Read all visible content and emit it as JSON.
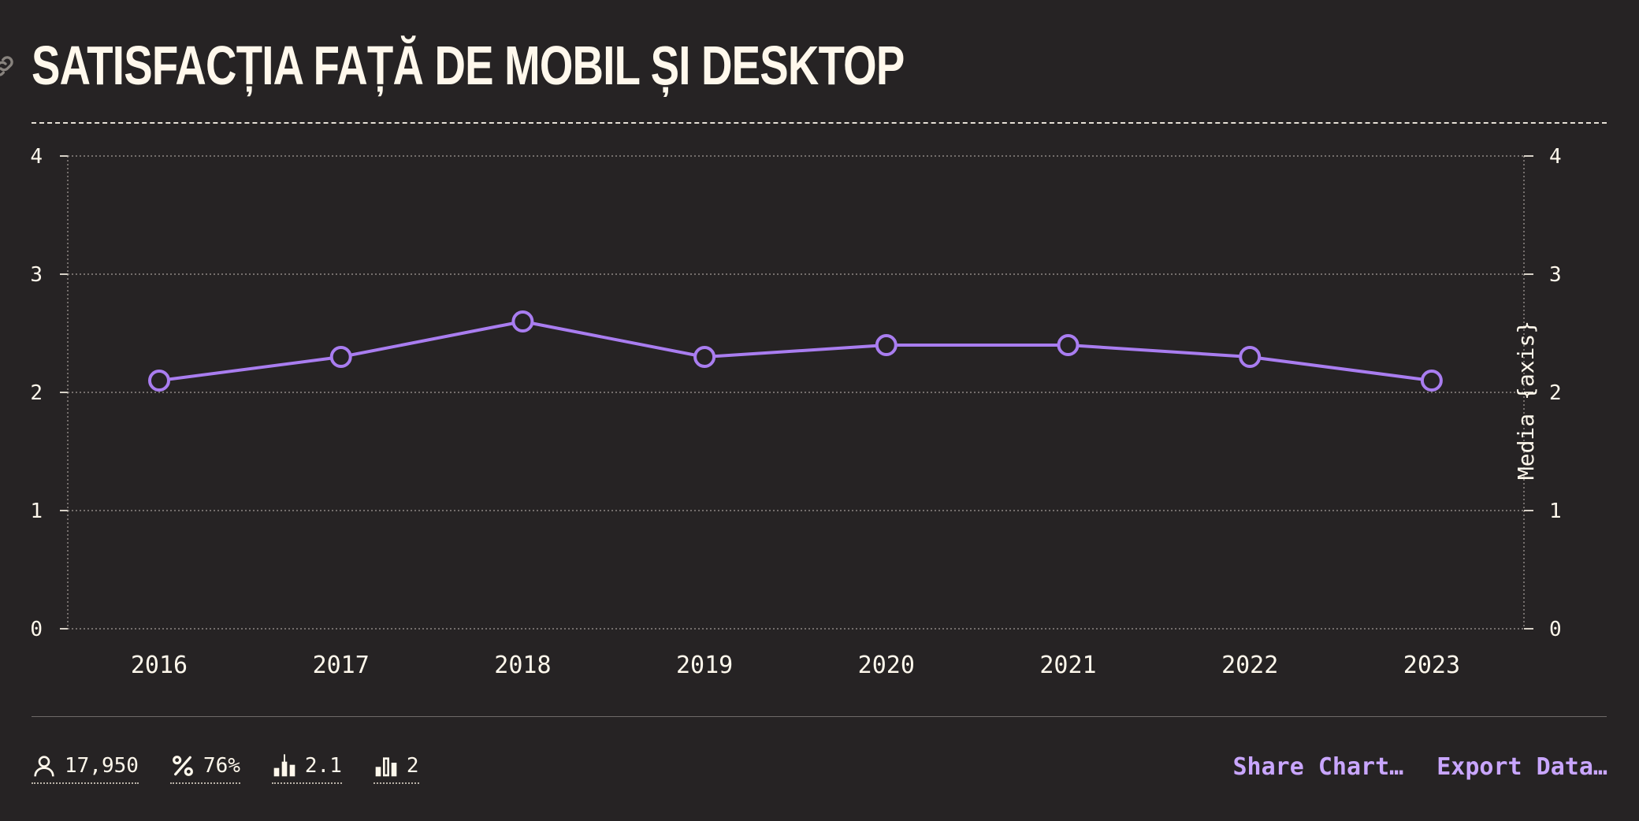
{
  "title": "SATISFACȚIA FAȚĂ DE MOBIL ȘI DESKTOP",
  "colors": {
    "background": "#262324",
    "text": "#fff8ec",
    "accent": "#a97df0",
    "link": "#c9a6ff"
  },
  "icons": {
    "title_link": "link-icon"
  },
  "chart_data": {
    "type": "line",
    "title": "SATISFACȚIA FAȚĂ DE MOBIL ȘI DESKTOP",
    "categories": [
      "2016",
      "2017",
      "2018",
      "2019",
      "2020",
      "2021",
      "2022",
      "2023"
    ],
    "series": [
      {
        "values": [
          2.1,
          2.3,
          2.6,
          2.3,
          2.4,
          2.4,
          2.3,
          2.1
        ],
        "color": "#a97df0"
      }
    ],
    "ylim": [
      0,
      4
    ],
    "yticks": [
      0,
      1,
      2,
      3,
      4
    ],
    "ylabel_right": "Media {axis}",
    "grid": true,
    "legend": "none"
  },
  "stats": [
    {
      "icon": "user-icon",
      "value": "17,950"
    },
    {
      "icon": "percent-icon",
      "value": "76%"
    },
    {
      "icon": "mean-chart-icon",
      "value": "2.1"
    },
    {
      "icon": "median-chart-icon",
      "value": "2"
    }
  ],
  "actions": {
    "share": "Share Chart…",
    "export": "Export Data…"
  }
}
